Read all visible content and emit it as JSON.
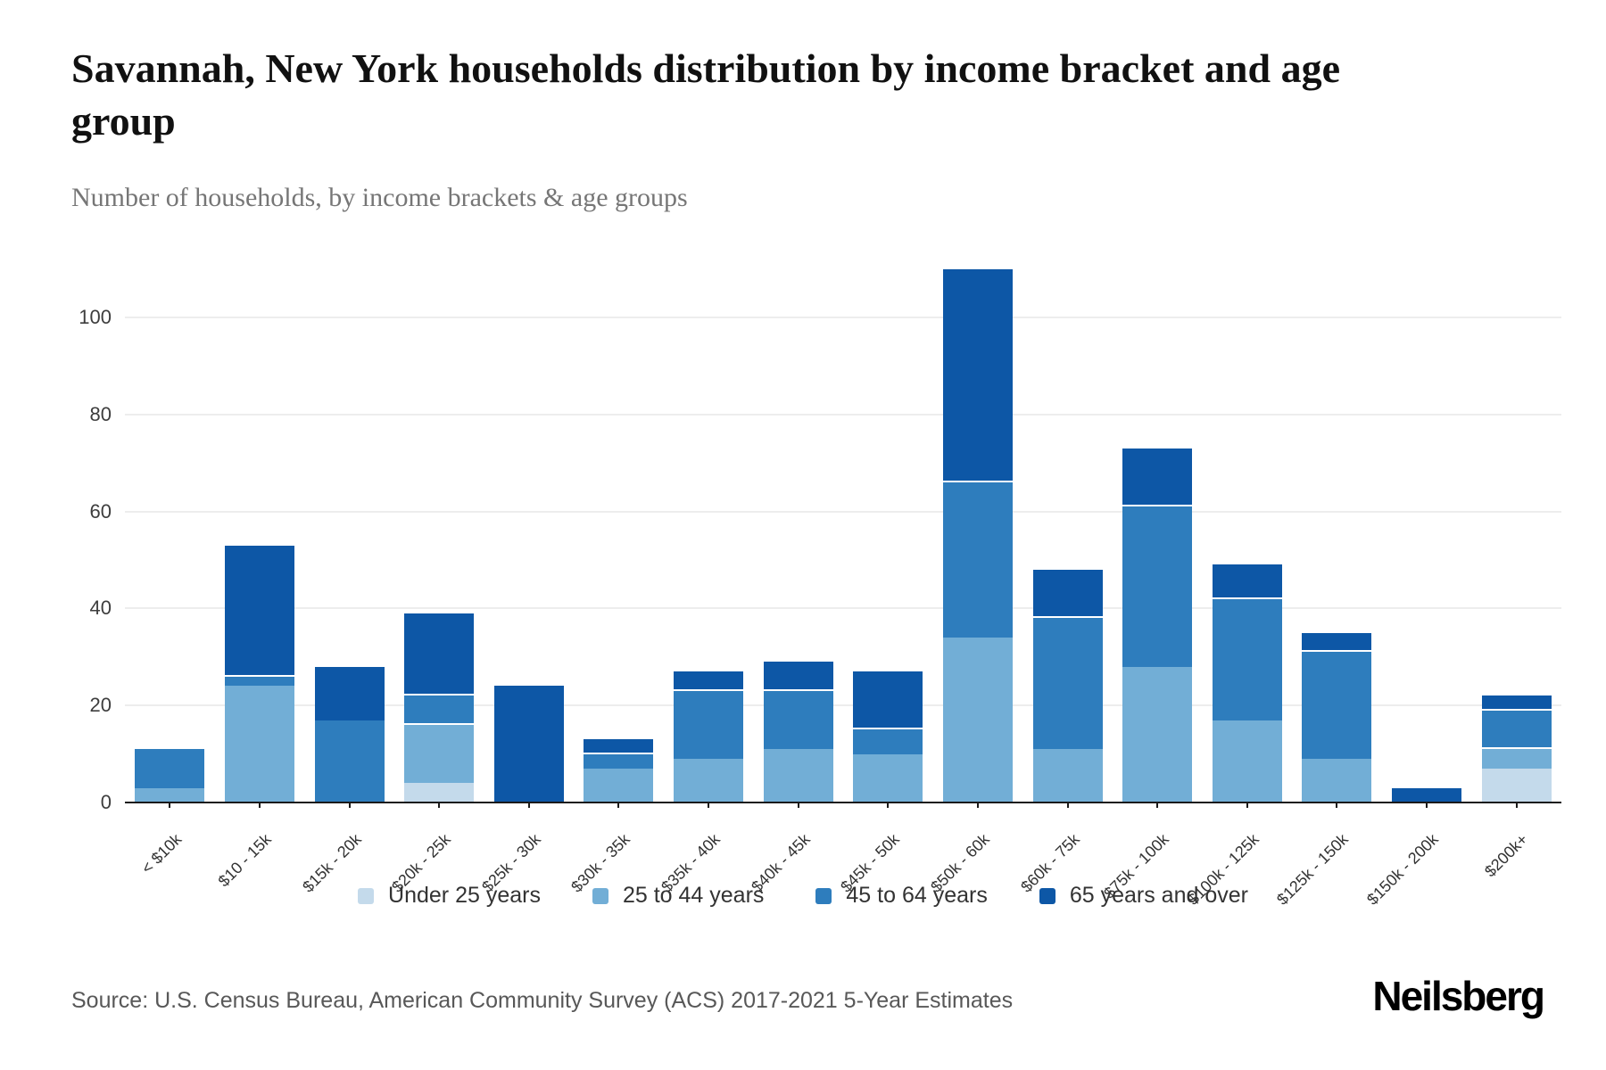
{
  "header": {
    "title": "Savannah, New York households distribution by income bracket and age group",
    "subtitle": "Number of households, by income brackets & age groups"
  },
  "chart_data": {
    "type": "bar",
    "stacked": true,
    "title": "Savannah, New York households distribution by income bracket and age group",
    "subtitle": "Number of households, by income brackets & age groups",
    "categories": [
      "< $10k",
      "$10 - 15k",
      "$15k - 20k",
      "$20k - 25k",
      "$25k - 30k",
      "$30k - 35k",
      "$35k - 40k",
      "$40k - 45k",
      "$45k - 50k",
      "$50k - 60k",
      "$60k - 75k",
      "$75k - 100k",
      "$100k - 125k",
      "$125k - 150k",
      "$150k - 200k",
      "$200k+"
    ],
    "series": [
      {
        "name": "Under 25 years",
        "color": "#c4daeb",
        "values": [
          0,
          0,
          0,
          4,
          0,
          0,
          0,
          0,
          0,
          0,
          0,
          0,
          0,
          0,
          0,
          7
        ]
      },
      {
        "name": "25 to 44 years",
        "color": "#72aed6",
        "values": [
          3,
          24,
          0,
          12,
          0,
          7,
          9,
          11,
          10,
          34,
          11,
          28,
          17,
          9,
          0,
          4
        ]
      },
      {
        "name": "45 to 64 years",
        "color": "#2e7dbd",
        "values": [
          8,
          2,
          17,
          6,
          0,
          3,
          14,
          12,
          5,
          32,
          27,
          33,
          25,
          22,
          0,
          8
        ]
      },
      {
        "name": "65 years and over",
        "color": "#0d57a6",
        "values": [
          0,
          27,
          11,
          17,
          24,
          3,
          4,
          6,
          12,
          44,
          10,
          12,
          7,
          4,
          3,
          3
        ]
      }
    ],
    "totals": [
      11,
      53,
      28,
      39,
      24,
      13,
      27,
      29,
      27,
      110,
      48,
      73,
      49,
      35,
      3,
      22
    ],
    "y_ticks": [
      0,
      20,
      40,
      60,
      80,
      100
    ],
    "ylim": [
      0,
      112
    ],
    "grid": true,
    "legend_position": "bottom"
  },
  "footer": {
    "source": "Source: U.S. Census Bureau, American Community Survey (ACS) 2017-2021 5-Year Estimates"
  },
  "branding": {
    "logo_text": "Neilsberg"
  }
}
